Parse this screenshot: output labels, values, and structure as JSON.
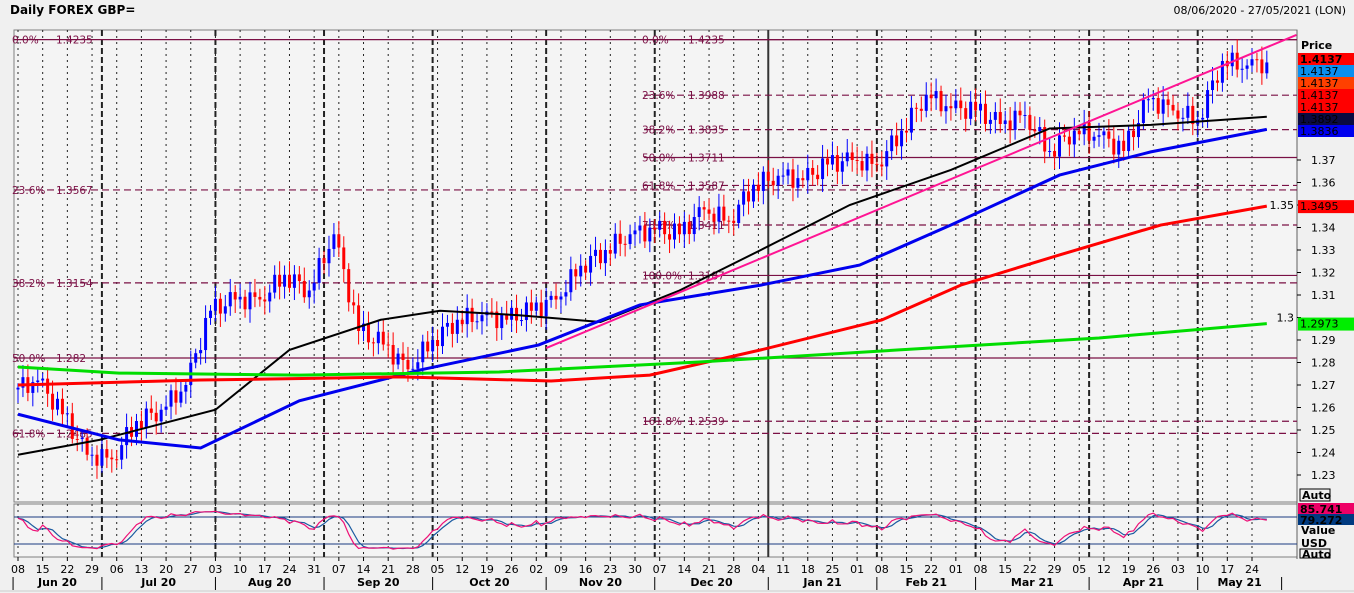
{
  "header": {
    "title": "Daily FOREX GBP=",
    "date_range": "08/06/2020 - 27/05/2021 (LON)"
  },
  "right_axis": {
    "title": "Price",
    "badges": [
      {
        "text": "1.4137",
        "bg": "#ff0000",
        "fg": "#000000",
        "bold": true
      },
      {
        "text": "1.4137",
        "bg": "#0a8ff0",
        "fg": "#ffffff"
      },
      {
        "text": "1.4137",
        "bg": "#ff4000",
        "fg": "#000000"
      },
      {
        "text": "1.4137",
        "bg": "#ff0000",
        "fg": "#000000"
      },
      {
        "text": "1.4137",
        "bg": "#ff0000",
        "fg": "#000000"
      },
      {
        "text": "1.3892",
        "bg": "#0a0a40",
        "fg": "#ffffff"
      },
      {
        "text": "1.3836",
        "bg": "#0000ee",
        "fg": "#ffffff"
      }
    ],
    "ma_badges": [
      {
        "text": "1.3495",
        "value": 1.3495,
        "bg": "#ff0000",
        "fg": "#000000"
      },
      {
        "text": "1.2973",
        "value": 1.2973,
        "bg": "#00ee00",
        "fg": "#000000"
      }
    ],
    "ticks": [
      "1.37",
      "1.36",
      "1.35",
      "1.34",
      "1.33",
      "1.32",
      "1.31",
      "1.3",
      "1.29",
      "1.28",
      "1.27",
      "1.26",
      "1.25",
      "1.24",
      "1.23"
    ],
    "auto_label": "Auto",
    "osc_badges": [
      {
        "text": "85.741",
        "bg": "#ee0066",
        "fg": "#000000"
      },
      {
        "text": "79.272",
        "bg": "#003a80",
        "fg": "#ffffff"
      }
    ],
    "osc_value_label": "Value",
    "osc_currency": "USD",
    "osc_auto_label": "Auto"
  },
  "chart_data": {
    "type": "candlestick",
    "title": "Daily FOREX GBP=",
    "ylim": [
      1.2205,
      1.4265
    ],
    "x_unit": "weeks since 08 Jun 2020",
    "week_labels": [
      "08",
      "15",
      "22",
      "29",
      "06",
      "13",
      "20",
      "27",
      "03",
      "10",
      "17",
      "24",
      "31",
      "07",
      "14",
      "21",
      "28",
      "05",
      "12",
      "19",
      "26",
      "02",
      "09",
      "16",
      "23",
      "30",
      "07",
      "14",
      "21",
      "28",
      "04",
      "11",
      "18",
      "25",
      "01",
      "08",
      "15",
      "22",
      "01",
      "08",
      "15",
      "22",
      "29",
      "05",
      "12",
      "19",
      "26",
      "03",
      "10",
      "17",
      "24"
    ],
    "months": [
      {
        "label": "Jun 20",
        "start_week": -0.2
      },
      {
        "label": "Jul 20",
        "start_week": 3.4
      },
      {
        "label": "Aug 20",
        "start_week": 8
      },
      {
        "label": "Sep 20",
        "start_week": 12.4
      },
      {
        "label": "Oct 20",
        "start_week": 16.8
      },
      {
        "label": "Nov 20",
        "start_week": 21.4
      },
      {
        "label": "Dec 20",
        "start_week": 25.8
      },
      {
        "label": "Jan 21",
        "start_week": 30.4
      },
      {
        "label": "Feb 21",
        "start_week": 34.8
      },
      {
        "label": "Mar 21",
        "start_week": 38.8
      },
      {
        "label": "Apr 21",
        "start_week": 43.4
      },
      {
        "label": "May 21",
        "start_week": 47.8
      },
      {
        "label": "",
        "start_week": 51.2
      }
    ],
    "weekly_close": [
      1.272,
      1.257,
      1.239,
      1.237,
      1.254,
      1.259,
      1.27,
      1.303,
      1.308,
      1.308,
      1.319,
      1.312,
      1.337,
      1.294,
      1.288,
      1.277,
      1.29,
      1.299,
      1.301,
      1.299,
      1.303,
      1.308,
      1.323,
      1.33,
      1.337,
      1.339,
      1.337,
      1.348,
      1.343,
      1.359,
      1.363,
      1.361,
      1.368,
      1.37,
      1.368,
      1.383,
      1.399,
      1.393,
      1.392,
      1.386,
      1.39,
      1.374,
      1.383,
      1.381,
      1.374,
      1.397,
      1.392,
      1.388,
      1.414,
      1.412,
      1.4137
    ],
    "start_price": 1.268,
    "series": [
      {
        "name": "MA black",
        "color": "#000000",
        "points": [
          [
            0,
            1.239
          ],
          [
            3.3,
            1.2456
          ],
          [
            8,
            1.259
          ],
          [
            11,
            1.2856
          ],
          [
            14.7,
            1.299
          ],
          [
            17.1,
            1.303
          ],
          [
            20.3,
            1.301
          ],
          [
            23.6,
            1.298
          ],
          [
            26.8,
            1.312
          ],
          [
            30.1,
            1.33
          ],
          [
            33.7,
            1.35
          ],
          [
            37.8,
            1.3656
          ],
          [
            41.8,
            1.384
          ],
          [
            45.9,
            1.3856
          ],
          [
            50.6,
            1.3892
          ]
        ]
      },
      {
        "name": "MA blue",
        "color": "#0000ee",
        "points": [
          [
            0,
            1.257
          ],
          [
            4.1,
            1.2456
          ],
          [
            7.4,
            1.242
          ],
          [
            11.4,
            1.263
          ],
          [
            16.3,
            1.2767
          ],
          [
            21.1,
            1.2878
          ],
          [
            25.2,
            1.3056
          ],
          [
            30.1,
            1.3144
          ],
          [
            34.1,
            1.3233
          ],
          [
            37.8,
            1.3411
          ],
          [
            42.2,
            1.3633
          ],
          [
            45.9,
            1.3736
          ],
          [
            50.6,
            1.3836
          ]
        ]
      },
      {
        "name": "MA red",
        "color": "#ff0000",
        "points": [
          [
            0,
            1.27
          ],
          [
            7.4,
            1.2722
          ],
          [
            15.5,
            1.2736
          ],
          [
            21.6,
            1.2718
          ],
          [
            25.6,
            1.2744
          ],
          [
            30.1,
            1.2856
          ],
          [
            35,
            1.2989
          ],
          [
            38.2,
            1.3144
          ],
          [
            42.2,
            1.3278
          ],
          [
            46.3,
            1.3411
          ],
          [
            50.6,
            1.3495
          ]
        ]
      },
      {
        "name": "MA green",
        "color": "#00dd00",
        "points": [
          [
            0,
            1.278
          ],
          [
            4.1,
            1.2753
          ],
          [
            11.4,
            1.2744
          ],
          [
            19.5,
            1.2758
          ],
          [
            27.6,
            1.2802
          ],
          [
            35.7,
            1.2856
          ],
          [
            43.8,
            1.2909
          ],
          [
            50.6,
            1.2973
          ]
        ]
      },
      {
        "name": "Trendline",
        "color": "#ff1493",
        "points": [
          [
            21.4,
            1.2864
          ],
          [
            51.8,
            1.4256
          ]
        ]
      }
    ],
    "fib_left": [
      {
        "label": "0.0%",
        "value": "1.4235",
        "style": "solid"
      },
      {
        "label": "23.6%",
        "value": "1.3567",
        "style": "dashed"
      },
      {
        "label": "38.2%",
        "value": "1.3154",
        "style": "dashed"
      },
      {
        "label": "50.0%",
        "value": "1.282",
        "style": "solid"
      },
      {
        "label": "61.8%",
        "value": "1.2485",
        "style": "dashed"
      }
    ],
    "fib_right": [
      {
        "label": "0.0%",
        "value": "1.4235",
        "style": "solid"
      },
      {
        "label": "23.6%",
        "value": "1.3988",
        "style": "dashed"
      },
      {
        "label": "38.2%",
        "value": "1.3835",
        "style": "dashed"
      },
      {
        "label": "50.0%",
        "value": "1.3711",
        "style": "solid"
      },
      {
        "label": "61.8%",
        "value": "1.3587",
        "style": "dashed"
      },
      {
        "label": "78.6%",
        "value": "1.3411",
        "style": "dashed"
      },
      {
        "label": "100.0%",
        "value": "1.3187",
        "style": "solid"
      },
      {
        "label": "161.8%",
        "value": "1.2539",
        "style": "dashed"
      }
    ],
    "oscillator": {
      "levels": [
        80,
        20
      ],
      "last_k": 85.741,
      "last_d": 79.272,
      "colors": [
        "#ee1177",
        "#1a5aa0"
      ]
    },
    "up_color": "#0000ff",
    "down_color": "#ff0000"
  }
}
